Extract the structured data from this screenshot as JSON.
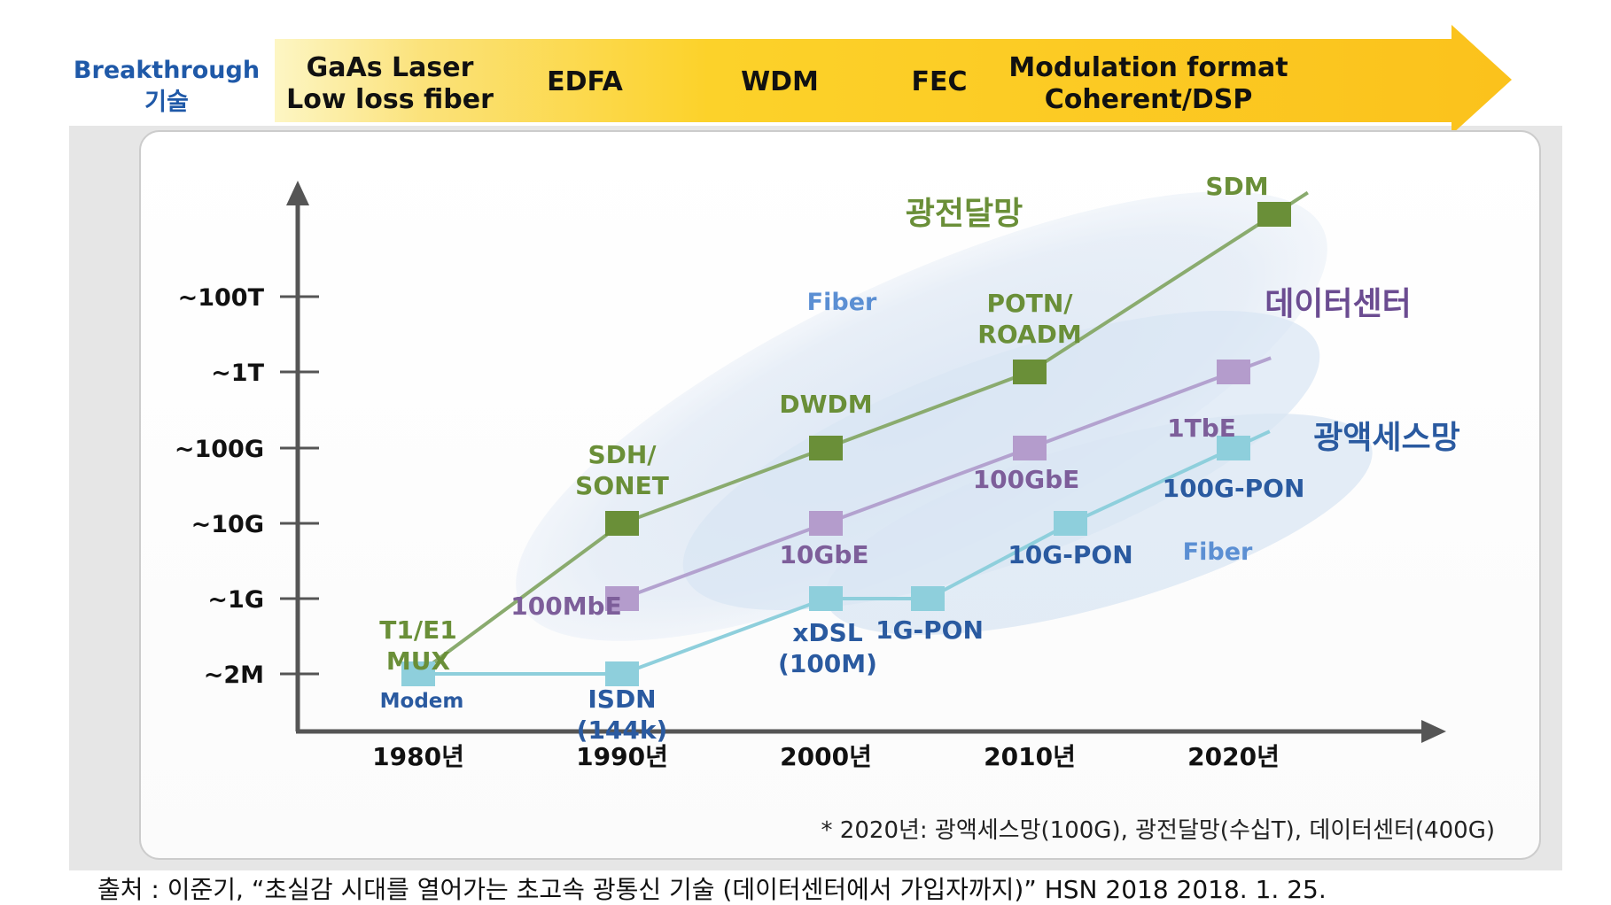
{
  "header": {
    "breakthrough_label_line1": "Breakthrough",
    "breakthrough_label_line2": "기술",
    "tech_items": [
      {
        "line1": "GaAs Laser",
        "line2": "Low loss fiber"
      },
      {
        "line1": "EDFA",
        "line2": ""
      },
      {
        "line1": "WDM",
        "line2": ""
      },
      {
        "line1": "FEC",
        "line2": ""
      },
      {
        "line1": "Modulation format",
        "line2": "Coherent/DSP"
      }
    ]
  },
  "chart_data": {
    "type": "line",
    "x": [
      "1980년",
      "1990년",
      "2000년",
      "2010년",
      "2020년"
    ],
    "y_ticks": [
      "~2M",
      "~1G",
      "~10G",
      "~100G",
      "~1T",
      "~100T"
    ],
    "series": [
      {
        "name": "광전달망",
        "color": "#8aab6e",
        "marker_color": "#6a8f38",
        "points": [
          {
            "x": 1980,
            "y": "~2M",
            "label": "T1/E1 MUX"
          },
          {
            "x": 1990,
            "y": "~10G",
            "label": "SDH/ SONET"
          },
          {
            "x": 2000,
            "y": "~100G",
            "label": "DWDM"
          },
          {
            "x": 2010,
            "y": "~1T",
            "label": "POTN/ ROADM"
          },
          {
            "x": 2022,
            "y": ">~100T",
            "label": "SDM"
          }
        ]
      },
      {
        "name": "데이터센터",
        "color": "#b3a2cf",
        "marker_color": "#b49ccc",
        "points": [
          {
            "x": 1990,
            "y": "~1G",
            "label": "100MbE"
          },
          {
            "x": 2000,
            "y": "~10G",
            "label": "10GbE"
          },
          {
            "x": 2010,
            "y": "~100G",
            "label": "100GbE"
          },
          {
            "x": 2020,
            "y": "~1T",
            "label": "1TbE"
          }
        ]
      },
      {
        "name": "광액세스망",
        "color": "#8ecfdc",
        "marker_color": "#8ecfdc",
        "points": [
          {
            "x": 1980,
            "y": "~2M",
            "label": "Modem"
          },
          {
            "x": 1990,
            "y": "~2M",
            "label": "ISDN (144k)"
          },
          {
            "x": 2000,
            "y": "~1G",
            "label": "xDSL (100M)"
          },
          {
            "x": 2005,
            "y": "~1G",
            "label": "1G-PON"
          },
          {
            "x": 2012,
            "y": "~10G",
            "label": "10G-PON"
          },
          {
            "x": 2020,
            "y": "~100G",
            "label": "100G-PON"
          }
        ]
      }
    ],
    "annotations": [
      "Fiber",
      "Fiber"
    ],
    "footnote": "* 2020년: 광액세스망(100G), 광전달망(수십T), 데이터센터(400G)"
  },
  "source": "출처 : 이준기, “초실감 시대를 열어가는 초고속 광통신 기술 (데이터센터에서 가입자까지)” HSN 2018 2018. 1. 25."
}
